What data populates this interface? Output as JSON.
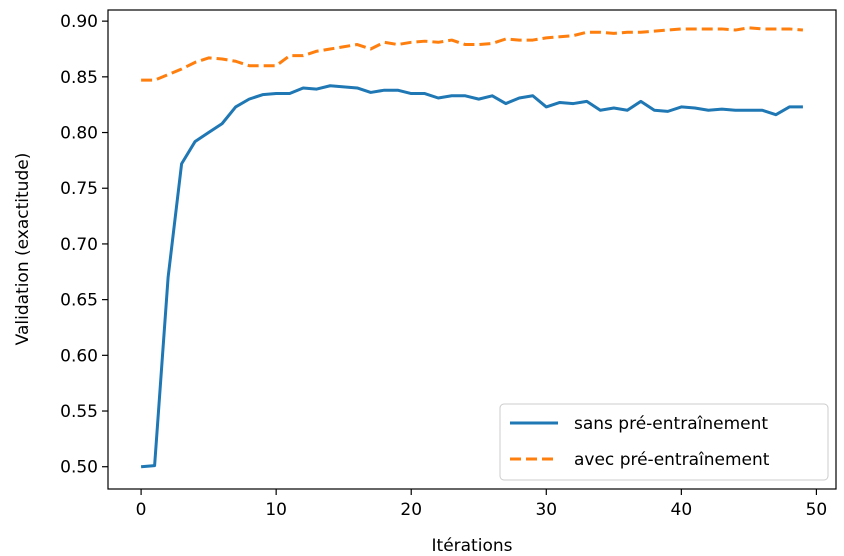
{
  "chart_data": {
    "type": "line",
    "xlabel": "Itérations",
    "ylabel": "Validation (exactitude)",
    "xlim": [
      -2.45,
      51.45
    ],
    "ylim": [
      0.48,
      0.91
    ],
    "xticks": [
      0,
      10,
      20,
      30,
      40,
      50
    ],
    "yticks": [
      0.5,
      0.55,
      0.6,
      0.65,
      0.7,
      0.75,
      0.8,
      0.85,
      0.9
    ],
    "grid": false,
    "legend_position": "lower-right",
    "x": [
      0,
      1,
      2,
      3,
      4,
      5,
      6,
      7,
      8,
      9,
      10,
      11,
      12,
      13,
      14,
      15,
      16,
      17,
      18,
      19,
      20,
      21,
      22,
      23,
      24,
      25,
      26,
      27,
      28,
      29,
      30,
      31,
      32,
      33,
      34,
      35,
      36,
      37,
      38,
      39,
      40,
      41,
      42,
      43,
      44,
      45,
      46,
      47,
      48,
      49
    ],
    "series": [
      {
        "name": "sans pré-entraînement",
        "color": "#1f77b4",
        "dash": "solid",
        "values": [
          0.5,
          0.501,
          0.67,
          0.772,
          0.792,
          0.8,
          0.808,
          0.823,
          0.83,
          0.834,
          0.835,
          0.835,
          0.84,
          0.839,
          0.842,
          0.841,
          0.84,
          0.836,
          0.838,
          0.838,
          0.835,
          0.835,
          0.831,
          0.833,
          0.833,
          0.83,
          0.833,
          0.826,
          0.831,
          0.833,
          0.823,
          0.827,
          0.826,
          0.828,
          0.82,
          0.822,
          0.82,
          0.828,
          0.82,
          0.819,
          0.823,
          0.822,
          0.82,
          0.821,
          0.82,
          0.82,
          0.82,
          0.816,
          0.823,
          0.823
        ]
      },
      {
        "name": "avec pré-entraînement",
        "color": "#ff7f0e",
        "dash": "dashed",
        "values": [
          0.847,
          0.847,
          0.852,
          0.857,
          0.863,
          0.867,
          0.866,
          0.864,
          0.86,
          0.86,
          0.86,
          0.869,
          0.869,
          0.873,
          0.875,
          0.877,
          0.879,
          0.875,
          0.881,
          0.879,
          0.881,
          0.882,
          0.881,
          0.883,
          0.879,
          0.879,
          0.88,
          0.884,
          0.883,
          0.883,
          0.885,
          0.886,
          0.887,
          0.89,
          0.89,
          0.889,
          0.89,
          0.89,
          0.891,
          0.892,
          0.893,
          0.893,
          0.893,
          0.893,
          0.892,
          0.894,
          0.893,
          0.893,
          0.893,
          0.892
        ]
      }
    ]
  }
}
